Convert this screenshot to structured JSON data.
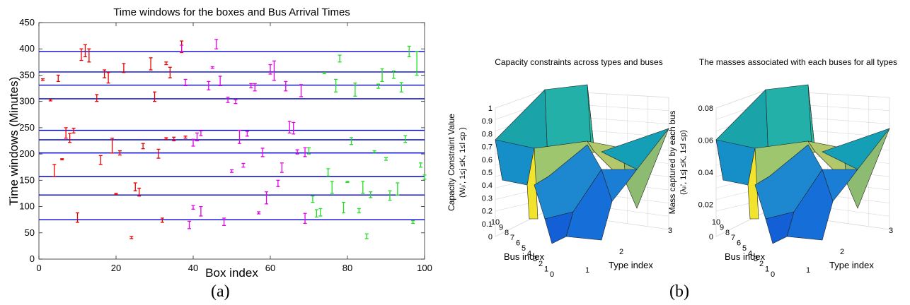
{
  "captions": {
    "a": "(a)",
    "b": "(b)"
  },
  "chart_data": [
    {
      "type": "scatter",
      "title": "Time windows for the boxes and Bus Arrival Times",
      "xlabel": "Box index",
      "ylabel": "Time windows (Minutes)",
      "xlim": [
        0,
        100
      ],
      "ylim": [
        0,
        450
      ],
      "xticks": [
        "0",
        "20",
        "40",
        "60",
        "80",
        "100"
      ],
      "yticks": [
        "0",
        "50",
        "100",
        "150",
        "200",
        "250",
        "300",
        "350",
        "400",
        "450"
      ],
      "grid": false,
      "bus_arrival_times": [
        75,
        122,
        157,
        202,
        227,
        245,
        305,
        331,
        356,
        395
      ],
      "line_color": "#0000cc",
      "series": [
        {
          "color": "#e60000",
          "windows": [
            [
              1,
              340,
              343
            ],
            [
              3,
              301,
              304
            ],
            [
              5,
              338,
              350
            ],
            [
              4,
              157,
              180
            ],
            [
              6,
              189,
              191
            ],
            [
              8,
              222,
              239
            ],
            [
              7,
              230,
              250
            ],
            [
              9,
              240,
              249
            ],
            [
              10,
              70,
              88
            ],
            [
              11,
              378,
              400
            ],
            [
              12,
              385,
              408
            ],
            [
              13,
              375,
              400
            ],
            [
              15,
              300,
              313
            ],
            [
              16,
              180,
              197
            ],
            [
              17,
              345,
              360
            ],
            [
              18,
              335,
              355
            ],
            [
              19,
              202,
              230
            ],
            [
              20,
              123,
              125
            ],
            [
              22,
              355,
              372
            ],
            [
              21,
              198,
              206
            ],
            [
              24,
              39,
              43
            ],
            [
              25,
              130,
              145
            ],
            [
              26,
              120,
              135
            ],
            [
              27,
              210,
              220
            ],
            [
              29,
              360,
              383
            ],
            [
              30,
              300,
              318
            ],
            [
              31,
              192,
              209
            ],
            [
              33,
              370,
              375
            ],
            [
              34,
              345,
              365
            ],
            [
              33,
              228,
              231
            ],
            [
              32,
              70,
              78
            ],
            [
              35,
              225,
              232
            ],
            [
              37,
              393,
              415
            ],
            [
              38,
              230,
              234
            ]
          ]
        },
        {
          "color": "#e600e6",
          "windows": [
            [
              37,
              395,
              407
            ],
            [
              38,
              330,
              342
            ],
            [
              40,
              215,
              228
            ],
            [
              41,
              225,
              240
            ],
            [
              42,
              235,
              244
            ],
            [
              39,
              58,
              72
            ],
            [
              40,
              95,
              102
            ],
            [
              42,
              82,
              100
            ],
            [
              44,
              322,
              338
            ],
            [
              45,
              363,
              366
            ],
            [
              46,
              400,
              418
            ],
            [
              47,
              330,
              348
            ],
            [
              48,
              64,
              78
            ],
            [
              49,
              298,
              308
            ],
            [
              50,
              165,
              170
            ],
            [
              51,
              296,
              303
            ],
            [
              52,
              220,
              245
            ],
            [
              53,
              175,
              182
            ],
            [
              54,
              234,
              243
            ],
            [
              55,
              326,
              334
            ],
            [
              56,
              320,
              334
            ],
            [
              57,
              86,
              90
            ],
            [
              58,
              195,
              211
            ],
            [
              59,
              105,
              128
            ],
            [
              60,
              352,
              370
            ],
            [
              61,
              340,
              377
            ],
            [
              62,
              138,
              150
            ],
            [
              63,
              165,
              183
            ],
            [
              64,
              320,
              338
            ],
            [
              65,
              240,
              262
            ],
            [
              66,
              238,
              260
            ],
            [
              67,
              200,
              208
            ],
            [
              68,
              309,
              332
            ],
            [
              69,
              195,
              212
            ],
            [
              69,
              68,
              87
            ]
          ]
        },
        {
          "color": "#22dd22",
          "windows": [
            [
              70,
              200,
              212
            ],
            [
              71,
              108,
              120
            ],
            [
              72,
              80,
              94
            ],
            [
              73,
              82,
              96
            ],
            [
              74,
              353,
              355
            ],
            [
              75,
              158,
              172
            ],
            [
              76,
              125,
              148
            ],
            [
              77,
              318,
              342
            ],
            [
              78,
              375,
              388
            ],
            [
              79,
              88,
              108
            ],
            [
              80,
              146,
              148
            ],
            [
              81,
              218,
              231
            ],
            [
              82,
              310,
              335
            ],
            [
              83,
              88,
              96
            ],
            [
              84,
              125,
              148
            ],
            [
              85,
              39,
              48
            ],
            [
              86,
              117,
              128
            ],
            [
              87,
              203,
              206
            ],
            [
              88,
              325,
              333
            ],
            [
              89,
              338,
              362
            ],
            [
              90,
              188,
              193
            ],
            [
              91,
              112,
              130
            ],
            [
              92,
              344,
              358
            ],
            [
              93,
              122,
              145
            ],
            [
              94,
              318,
              336
            ],
            [
              95,
              222,
              235
            ],
            [
              96,
              385,
              405
            ],
            [
              97,
              68,
              73
            ],
            [
              98,
              350,
              395
            ],
            [
              99,
              175,
              183
            ],
            [
              100,
              152,
              160
            ]
          ]
        }
      ]
    },
    {
      "type": "surface",
      "title": "Capacity constraints across types and buses",
      "xlabel": "Type index",
      "ylabel": "Bus index",
      "zlabel": "Capacity Constraint Value",
      "zlabel2": "(Wⱼₗ', 1≤j ≤K, 1≤l ≤p )",
      "xticks": [
        "1",
        "2",
        "3"
      ],
      "yticks": [
        "0",
        "1",
        "2",
        "3",
        "4",
        "5",
        "6",
        "7",
        "8",
        "9",
        "10"
      ],
      "zticks": [
        "0",
        "0.1",
        "0.2",
        "0.3",
        "0.4",
        "0.5",
        "0.6",
        "0.7",
        "0.8",
        "0.9",
        "1"
      ],
      "zlim": [
        0,
        1
      ]
    },
    {
      "type": "surface",
      "title": "The masses associated with each buses for all types",
      "xlabel": "Type index",
      "ylabel": "Bus index",
      "zlabel": "Mass captured by each bus",
      "zlabel2": "(λⱼₗ', 1≤j ≤K, 1≤l ≤p)",
      "xticks": [
        "1",
        "2",
        "3"
      ],
      "yticks": [
        "0",
        "1",
        "2",
        "3",
        "4",
        "5",
        "6",
        "7",
        "8",
        "9",
        "10"
      ],
      "zticks": [
        "0",
        "0.02",
        "0.04",
        "0.06",
        "0.08"
      ],
      "zlim": [
        0,
        0.08
      ]
    }
  ]
}
